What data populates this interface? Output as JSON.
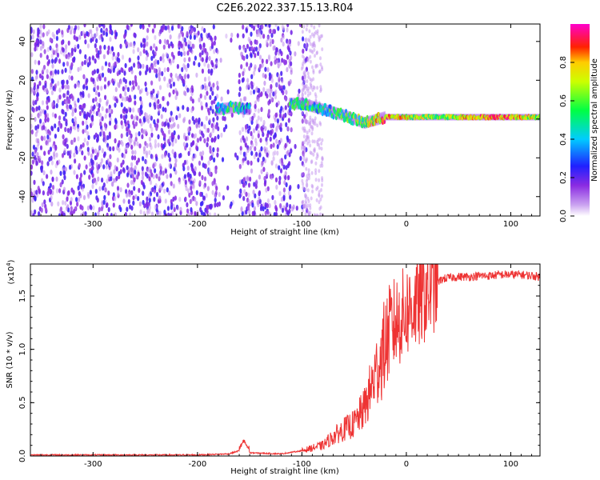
{
  "title": "C2E6.2022.337.15.13.R04",
  "chart_data": [
    {
      "type": "heatmap",
      "xlabel": "Height of straight line (km)",
      "ylabel": "Frequency (Hz)",
      "xlim": [
        -360,
        128
      ],
      "ylim": [
        -50,
        49
      ],
      "x_ticks": [
        -300,
        -200,
        -100,
        0,
        100
      ],
      "y_ticks": [
        -40,
        -20,
        0,
        20,
        40
      ],
      "colorbar": {
        "label": "Normalized spectral amplitude",
        "range": [
          0,
          1
        ],
        "ticks": [
          "0.0",
          "0.2",
          "0.4",
          "0.6",
          "0.8"
        ],
        "colormap": [
          "#ffffff",
          "#8a2be2",
          "#0000ff",
          "#00ffff",
          "#00ff00",
          "#ffff00",
          "#ff0000",
          "#ff00ff"
        ]
      },
      "structure": {
        "noise_region_x": [
          -360,
          -100
        ],
        "noise_gaps_x": [
          [
            -180,
            -160
          ],
          [
            -110,
            -100
          ]
        ],
        "signal_trace": {
          "x": [
            -180,
            -165,
            -150,
            -110,
            -100,
            -80,
            -60,
            -40,
            -20,
            0,
            30,
            60,
            90,
            128
          ],
          "freq_hz": [
            5,
            6,
            5,
            8,
            8,
            5,
            2,
            -2,
            1,
            1,
            1,
            1,
            1,
            1
          ],
          "amplitude": [
            0.4,
            0.5,
            0.35,
            0.45,
            0.5,
            0.45,
            0.5,
            0.6,
            0.8,
            0.7,
            0.6,
            0.75,
            0.85,
            0.65
          ]
        }
      }
    },
    {
      "type": "line",
      "xlabel": "Height of straight line (km)",
      "ylabel": "SNR (10 * v/v)",
      "y_multiplier": "(x10",
      "y_multiplier_exp": "4",
      "y_multiplier_close": ")",
      "xlim": [
        -360,
        128
      ],
      "ylim": [
        0,
        1.8
      ],
      "x_ticks": [
        -300,
        -200,
        -100,
        0,
        100
      ],
      "y_ticks": [
        "0.0",
        "0.5",
        "1.0",
        "1.5"
      ],
      "y_tick_values": [
        0,
        0.5,
        1.0,
        1.5
      ],
      "color": "#ee3333",
      "series": [
        {
          "x": [
            -360,
            -300,
            -250,
            -200,
            -170,
            -160,
            -155,
            -150,
            -120,
            -100,
            -80,
            -70,
            -60,
            -50,
            -40,
            -35,
            -30,
            -25,
            -20,
            -15,
            -10,
            -5,
            0,
            5,
            10,
            15,
            20,
            25,
            30,
            35,
            40,
            50,
            60,
            70,
            80,
            90,
            100,
            110,
            120,
            128
          ],
          "values": [
            0.01,
            0.01,
            0.01,
            0.01,
            0.02,
            0.05,
            0.1,
            0.03,
            0.02,
            0.05,
            0.1,
            0.18,
            0.25,
            0.3,
            0.45,
            0.6,
            0.75,
            0.9,
            1.05,
            1.2,
            1.25,
            1.3,
            1.35,
            1.4,
            1.42,
            1.48,
            1.52,
            1.58,
            1.63,
            1.66,
            1.67,
            1.68,
            1.68,
            1.69,
            1.69,
            1.7,
            1.7,
            1.7,
            1.69,
            1.68
          ]
        }
      ]
    }
  ]
}
